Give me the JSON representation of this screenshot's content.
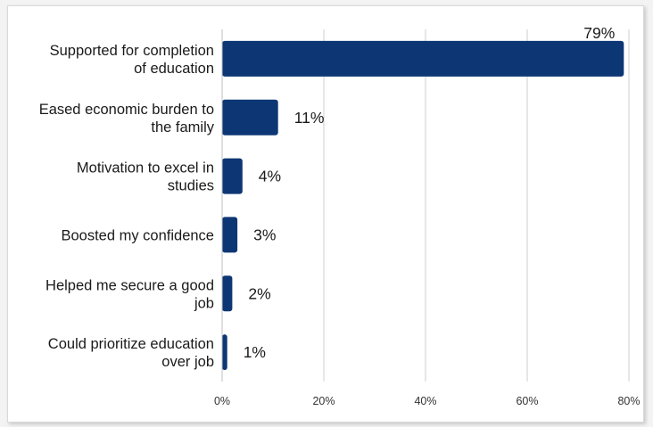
{
  "chart_data": {
    "type": "bar",
    "orientation": "horizontal",
    "categories": [
      [
        "Supported for completion",
        "of education"
      ],
      [
        "Eased economic burden to",
        "the family"
      ],
      [
        "Motivation to excel in",
        "studies"
      ],
      [
        "Boosted my confidence"
      ],
      [
        "Helped me secure a good",
        "job"
      ],
      [
        "Could prioritize education",
        "over job"
      ]
    ],
    "values": [
      79,
      11,
      4,
      3,
      2,
      1
    ],
    "value_labels": [
      "79%",
      "11%",
      "4%",
      "3%",
      "2%",
      "1%"
    ],
    "xlim": [
      0,
      80
    ],
    "xticks": [
      0,
      20,
      40,
      60,
      80
    ],
    "xtick_labels": [
      "0%",
      "20%",
      "40%",
      "60%",
      "80%"
    ],
    "title": "",
    "xlabel": "",
    "ylabel": "",
    "grid": "vertical",
    "legend": "none",
    "bar_color": "#0d3674",
    "grid_color": "#cfcfcf"
  }
}
